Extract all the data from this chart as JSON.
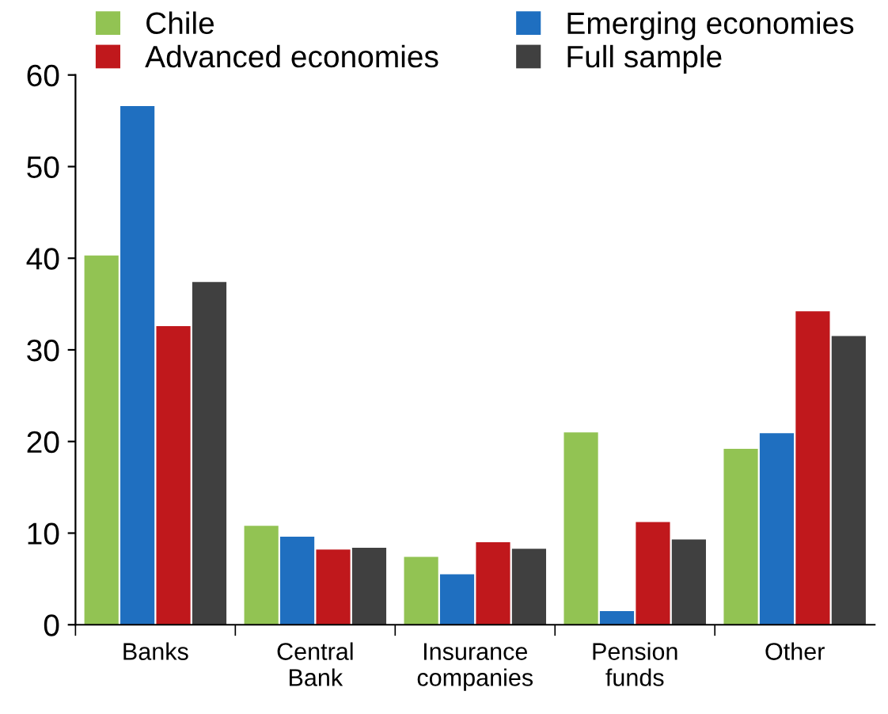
{
  "chart_data": {
    "type": "bar",
    "categories": [
      "Banks",
      "Central\nBank",
      "Insurance\ncompanies",
      "Pension\nfunds",
      "Other"
    ],
    "series": [
      {
        "name": "Chile",
        "color": "#92c353",
        "values": [
          40.3,
          10.8,
          7.4,
          21.0,
          19.2
        ]
      },
      {
        "name": "Emerging economies",
        "color": "#1f6fc0",
        "values": [
          56.6,
          9.6,
          5.5,
          1.5,
          20.9
        ]
      },
      {
        "name": "Advanced economies",
        "color": "#c0181c",
        "values": [
          32.6,
          8.2,
          9.0,
          11.2,
          34.2
        ]
      },
      {
        "name": "Full sample",
        "color": "#404040",
        "values": [
          37.4,
          8.4,
          8.3,
          9.3,
          31.5
        ]
      }
    ],
    "ylim": [
      0,
      60
    ],
    "yticks": [
      0,
      10,
      20,
      30,
      40,
      50,
      60
    ],
    "grid": false,
    "legend": "top"
  }
}
